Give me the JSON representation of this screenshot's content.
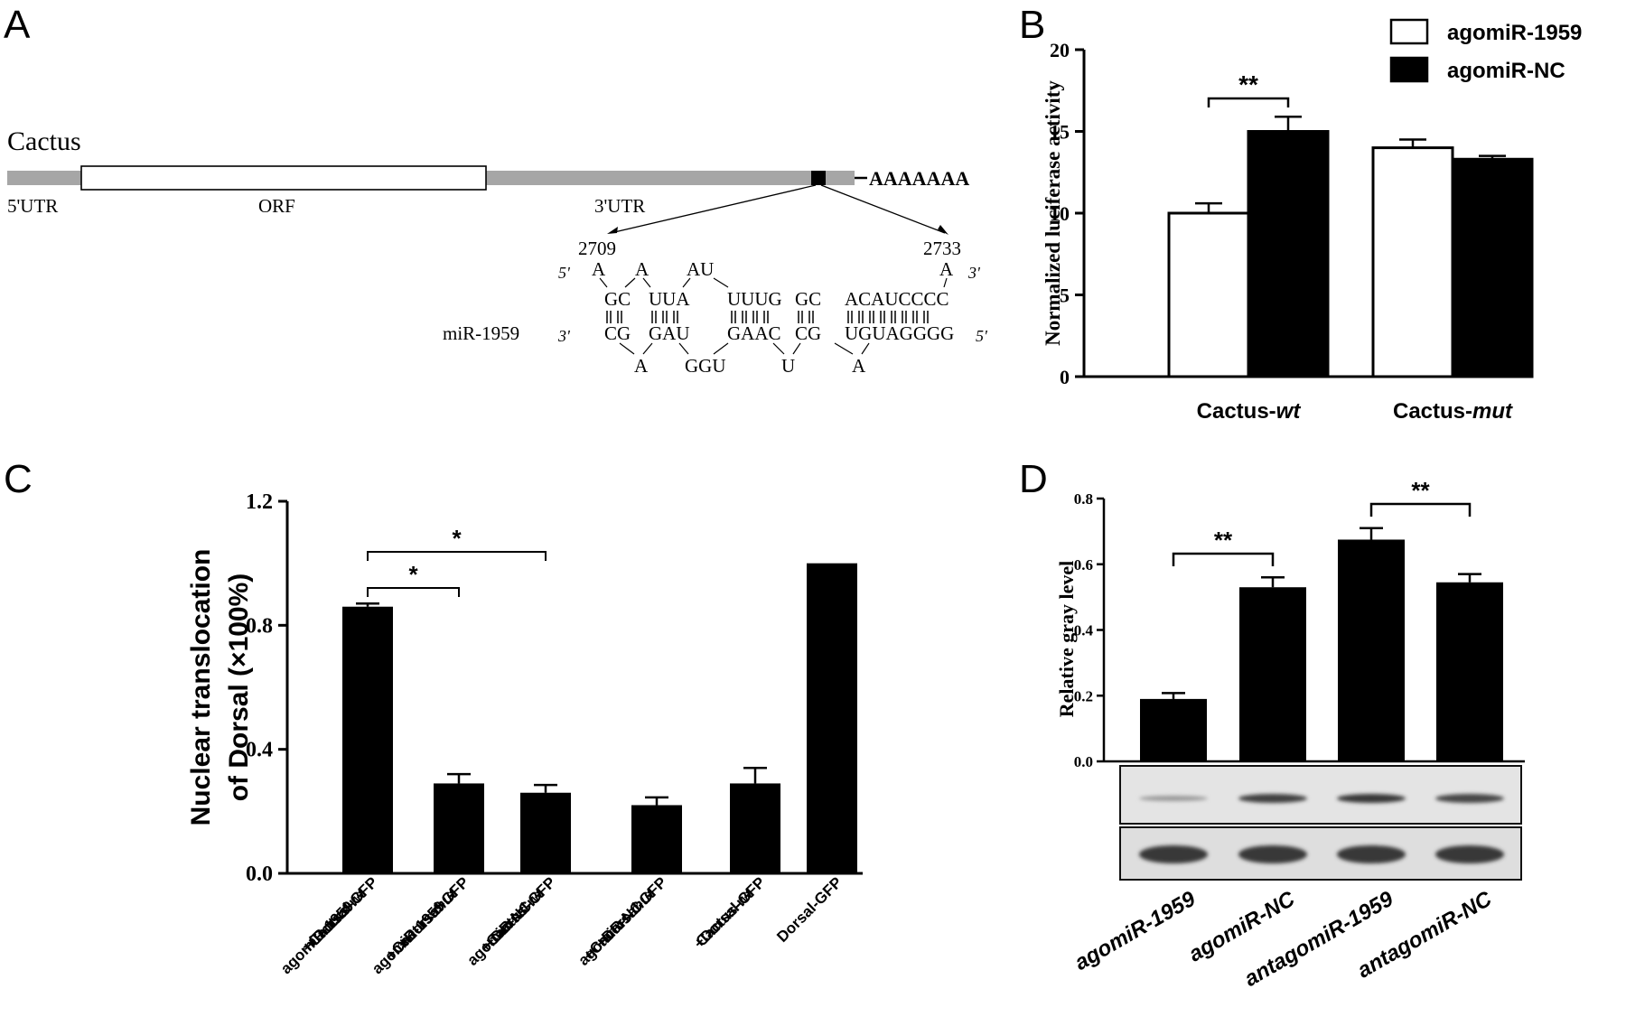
{
  "panels": {
    "A": "A",
    "B": "B",
    "C": "C",
    "D": "D"
  },
  "panelA": {
    "gene": "Cactus",
    "polyA": "AAAAAAA",
    "regions": [
      "5'UTR",
      "ORF",
      "3'UTR"
    ],
    "pos_start": "2709",
    "pos_end": "2733",
    "mirna_label": "miR-1959",
    "five_prime": "5'",
    "three_prime": "3'",
    "target_loops": [
      "A",
      "A",
      "AU",
      "A"
    ],
    "target_pairs": [
      "GC",
      "UUA",
      "UUUG",
      "GC",
      "ACAUCCCC"
    ],
    "mirna_pairs": [
      "CG",
      "GAU",
      "GAAC",
      "CG",
      "UGUAGGGG"
    ],
    "mirna_loops": [
      "A",
      "GGU",
      "U",
      "A"
    ]
  },
  "chart_data": [
    {
      "id": "B",
      "type": "bar",
      "ylabel": "Normalized luciferase activity",
      "ylim": [
        0,
        20
      ],
      "yticks": [
        0,
        5,
        10,
        15,
        20
      ],
      "categories": [
        {
          "pre": "Cactus-",
          "it": "wt"
        },
        {
          "pre": "Cactus-",
          "it": "mut"
        }
      ],
      "series": [
        {
          "name": "agomiR-1959",
          "color": "#ffffff",
          "values": [
            10.0,
            14.0
          ],
          "errors": [
            0.6,
            0.5
          ]
        },
        {
          "name": "agomiR-NC",
          "color": "#000000",
          "values": [
            15.0,
            13.3
          ],
          "errors": [
            0.9,
            0.2
          ]
        }
      ],
      "legend_position": "top-right",
      "significance": [
        {
          "label": "**",
          "category": 0
        }
      ]
    },
    {
      "id": "C",
      "type": "bar",
      "ylabel_lines": [
        "Nuclear translocation",
        "of Dorsal (×100%)"
      ],
      "ylim": [
        0,
        1.2
      ],
      "yticks": [
        "0.0",
        "0.4",
        "0.8",
        "1.2"
      ],
      "categories": [
        [
          [
            {
              "t": "agomiR-1959"
            }
          ],
          [
            {
              "t": "+Cactus-"
            },
            {
              "t": "wt",
              "i": true
            }
          ],
          [
            {
              "t": "+Dorsal-GFP"
            }
          ]
        ],
        [
          [
            {
              "t": "agomiR-1959"
            }
          ],
          [
            {
              "t": "+Cactus-"
            },
            {
              "t": "mut",
              "i": true
            }
          ],
          [
            {
              "t": "+Dorsal-GFP"
            }
          ]
        ],
        [
          [
            {
              "t": "agomiR-NC"
            }
          ],
          [
            {
              "t": "+Cactus-"
            },
            {
              "t": "wt",
              "i": true
            }
          ],
          [
            {
              "t": "+Dorsal-GFP"
            }
          ]
        ],
        [
          [
            {
              "t": "agomiR-NC"
            }
          ],
          [
            {
              "t": "+Cactus-"
            },
            {
              "t": "mut",
              "i": true
            }
          ],
          [
            {
              "t": "+Dorsal-GFP"
            }
          ]
        ],
        [
          [
            {
              "t": "Cactus-"
            },
            {
              "t": "wt",
              "i": true
            }
          ],
          [
            {
              "t": "+Dorsal-GFP"
            }
          ]
        ],
        [
          [
            {
              "t": "Dorsal-GFP"
            }
          ]
        ]
      ],
      "values": [
        0.86,
        0.29,
        0.26,
        0.22,
        0.29,
        1.0
      ],
      "errors": [
        0.01,
        0.03,
        0.025,
        0.025,
        0.05,
        0.0
      ],
      "significance": [
        {
          "label": "*",
          "from": 0,
          "to": 1
        },
        {
          "label": "*",
          "from": 0,
          "to": 2
        }
      ]
    },
    {
      "id": "D",
      "type": "bar",
      "ylabel": "Relative gray level",
      "ylim": [
        0,
        0.8
      ],
      "yticks": [
        "0.0",
        "0.2",
        "0.4",
        "0.6",
        "0.8"
      ],
      "categories": [
        "agomiR-1959",
        "agomiR-NC",
        "antagomiR-1959",
        "antagomiR-NC"
      ],
      "values": [
        0.19,
        0.53,
        0.675,
        0.545
      ],
      "errors": [
        0.018,
        0.03,
        0.035,
        0.025
      ],
      "significance": [
        {
          "label": "**",
          "from": 0,
          "to": 1
        },
        {
          "label": "**",
          "from": 2,
          "to": 3
        }
      ],
      "blot_band_intensity": [
        0.25,
        0.85,
        0.9,
        0.8
      ]
    }
  ]
}
